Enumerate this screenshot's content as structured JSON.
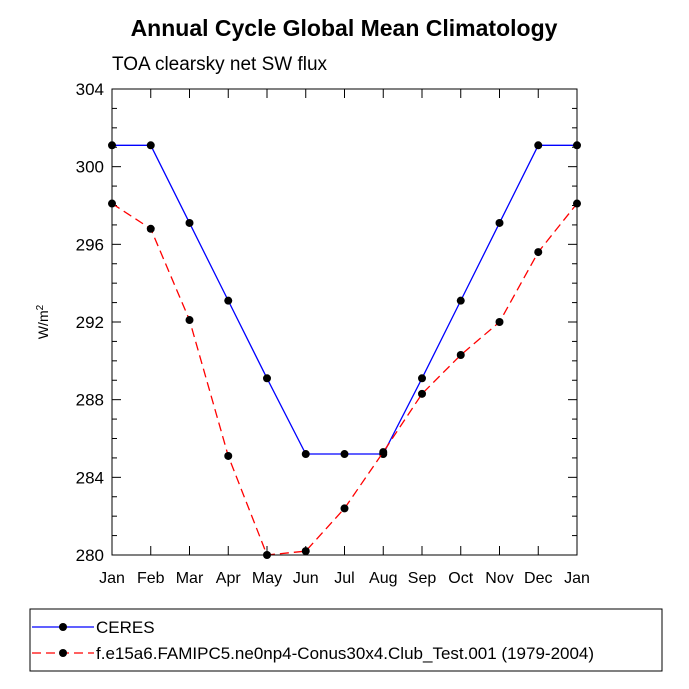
{
  "chart_data": {
    "type": "line",
    "title": "Annual Cycle Global Mean Climatology",
    "subtitle": "TOA clearsky net SW flux",
    "xlabel": "",
    "ylabel_base": "W/m",
    "ylabel_sup": "2",
    "categories": [
      "Jan",
      "Feb",
      "Mar",
      "Apr",
      "May",
      "Jun",
      "Jul",
      "Aug",
      "Sep",
      "Oct",
      "Nov",
      "Dec",
      "Jan"
    ],
    "ylim": [
      280,
      304
    ],
    "yticks": [
      "280",
      "284",
      "288",
      "292",
      "296",
      "300",
      "304"
    ],
    "series": [
      {
        "name": "CERES",
        "color": "#0000ff",
        "dash": "solid",
        "values": [
          301.1,
          301.1,
          297.1,
          293.1,
          289.1,
          285.2,
          285.2,
          285.2,
          289.1,
          293.1,
          297.1,
          301.1,
          301.1
        ]
      },
      {
        "name": "f.e15a6.FAMIPC5.ne0np4-Conus30x4.Club_Test.001 (1979-2004)",
        "color": "#ff0000",
        "dash": "dashed",
        "values": [
          298.1,
          296.8,
          292.1,
          285.1,
          280.0,
          280.2,
          282.4,
          285.3,
          288.3,
          290.3,
          292.0,
          295.6,
          298.1
        ]
      }
    ],
    "legend_position": "bottom"
  }
}
